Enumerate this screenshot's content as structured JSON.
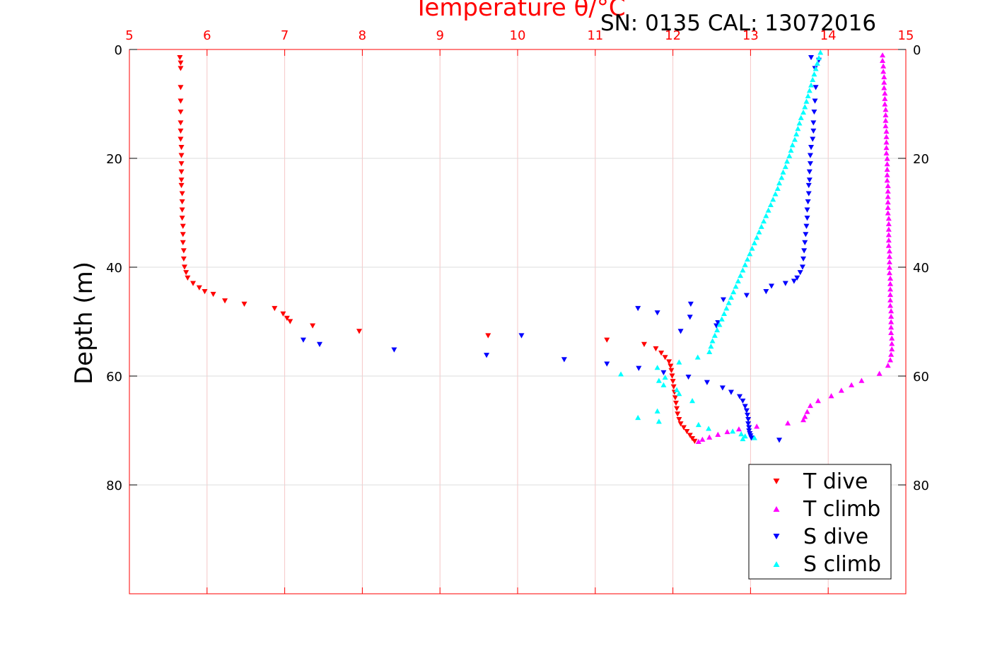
{
  "colors": {
    "t_dive": "#ff0000",
    "t_climb": "#ff00ff",
    "s_dive": "#0000ff",
    "s_climb": "#00ffff",
    "temp_axis": "#ff0000",
    "grid_temp": "#f5c6c6",
    "grid_depth": "#dcdcdc"
  },
  "chart_data": {
    "type": "scatter",
    "title": "Temperature θ/°C",
    "subtitle": "SN: 0135  CAL: 13072016",
    "xlabel": "Temperature θ/°C",
    "ylabel": "Depth (m)",
    "xlim": [
      5,
      15
    ],
    "ylim": [
      0,
      100
    ],
    "y_reversed": true,
    "x_ticks": [
      "5",
      "6",
      "7",
      "8",
      "9",
      "10",
      "11",
      "12",
      "13",
      "14",
      "15"
    ],
    "y_ticks": [
      "0",
      "20",
      "40",
      "60",
      "80"
    ],
    "grid": true,
    "legend_position": "bottom-right",
    "series": [
      {
        "name": "T dive",
        "marker": "triangle-down",
        "color": "#ff0000",
        "points": [
          [
            5.65,
            1.5
          ],
          [
            5.66,
            2.5
          ],
          [
            5.66,
            3.5
          ],
          [
            5.66,
            7
          ],
          [
            5.66,
            9.5
          ],
          [
            5.66,
            11.5
          ],
          [
            5.66,
            13.5
          ],
          [
            5.66,
            15
          ],
          [
            5.66,
            16.5
          ],
          [
            5.67,
            18
          ],
          [
            5.67,
            19.5
          ],
          [
            5.67,
            21
          ],
          [
            5.67,
            22.5
          ],
          [
            5.67,
            24
          ],
          [
            5.67,
            25
          ],
          [
            5.68,
            26.5
          ],
          [
            5.68,
            28
          ],
          [
            5.68,
            29.5
          ],
          [
            5.68,
            31
          ],
          [
            5.69,
            32.5
          ],
          [
            5.69,
            34
          ],
          [
            5.69,
            35.5
          ],
          [
            5.7,
            37
          ],
          [
            5.7,
            38.5
          ],
          [
            5.71,
            40
          ],
          [
            5.73,
            41
          ],
          [
            5.75,
            42
          ],
          [
            5.82,
            43
          ],
          [
            5.9,
            43.8
          ],
          [
            5.97,
            44.5
          ],
          [
            6.08,
            45
          ],
          [
            6.23,
            46.2
          ],
          [
            6.48,
            46.8
          ],
          [
            6.87,
            47.6
          ],
          [
            6.98,
            48.6
          ],
          [
            7.03,
            49.4
          ],
          [
            7.07,
            50
          ],
          [
            7.36,
            50.8
          ],
          [
            7.96,
            51.8
          ],
          [
            9.62,
            52.6
          ],
          [
            11.15,
            53.4
          ],
          [
            11.63,
            54.2
          ],
          [
            11.78,
            55
          ],
          [
            11.85,
            55.8
          ],
          [
            11.9,
            56.6
          ],
          [
            11.95,
            57.4
          ],
          [
            11.97,
            58.2
          ],
          [
            11.98,
            59
          ],
          [
            11.99,
            60
          ],
          [
            12.0,
            61
          ],
          [
            12.01,
            62
          ],
          [
            12.02,
            63
          ],
          [
            12.03,
            64
          ],
          [
            12.04,
            65
          ],
          [
            12.05,
            66
          ],
          [
            12.06,
            67
          ],
          [
            12.08,
            68
          ],
          [
            12.1,
            68.8
          ],
          [
            12.14,
            69.5
          ],
          [
            12.18,
            70.2
          ],
          [
            12.22,
            70.9
          ],
          [
            12.25,
            71.5
          ],
          [
            12.28,
            72
          ]
        ]
      },
      {
        "name": "T climb",
        "marker": "triangle-up",
        "color": "#ff00ff",
        "points": [
          [
            14.7,
            1
          ],
          [
            14.7,
            2
          ],
          [
            14.71,
            3
          ],
          [
            14.71,
            4
          ],
          [
            14.72,
            5
          ],
          [
            14.72,
            6
          ],
          [
            14.72,
            7
          ],
          [
            14.73,
            8
          ],
          [
            14.73,
            9
          ],
          [
            14.73,
            10
          ],
          [
            14.74,
            11
          ],
          [
            14.74,
            12
          ],
          [
            14.74,
            13
          ],
          [
            14.74,
            14
          ],
          [
            14.75,
            15
          ],
          [
            14.75,
            16
          ],
          [
            14.75,
            17
          ],
          [
            14.75,
            18
          ],
          [
            14.75,
            19
          ],
          [
            14.76,
            20
          ],
          [
            14.76,
            21
          ],
          [
            14.76,
            22
          ],
          [
            14.76,
            23
          ],
          [
            14.76,
            24
          ],
          [
            14.77,
            25
          ],
          [
            14.77,
            26
          ],
          [
            14.77,
            27
          ],
          [
            14.77,
            28
          ],
          [
            14.77,
            29
          ],
          [
            14.77,
            30
          ],
          [
            14.78,
            31
          ],
          [
            14.78,
            32
          ],
          [
            14.78,
            33
          ],
          [
            14.78,
            34
          ],
          [
            14.78,
            35
          ],
          [
            14.78,
            36
          ],
          [
            14.79,
            37
          ],
          [
            14.79,
            38
          ],
          [
            14.79,
            39
          ],
          [
            14.79,
            40
          ],
          [
            14.79,
            41
          ],
          [
            14.8,
            42
          ],
          [
            14.8,
            43
          ],
          [
            14.8,
            44
          ],
          [
            14.8,
            45
          ],
          [
            14.8,
            46
          ],
          [
            14.8,
            47
          ],
          [
            14.81,
            48
          ],
          [
            14.81,
            49
          ],
          [
            14.81,
            50
          ],
          [
            14.81,
            51
          ],
          [
            14.81,
            52
          ],
          [
            14.82,
            53
          ],
          [
            14.82,
            54
          ],
          [
            14.82,
            55
          ],
          [
            14.81,
            56
          ],
          [
            14.8,
            57
          ],
          [
            14.77,
            58
          ],
          [
            14.66,
            59.5
          ],
          [
            14.43,
            60.8
          ],
          [
            14.3,
            61.6
          ],
          [
            14.17,
            62.6
          ],
          [
            14.04,
            63.6
          ],
          [
            13.87,
            64.5
          ],
          [
            13.77,
            65.4
          ],
          [
            13.73,
            66.5
          ],
          [
            13.7,
            67.4
          ],
          [
            13.68,
            68
          ],
          [
            13.48,
            68.6
          ],
          [
            13.08,
            69.2
          ],
          [
            12.85,
            69.7
          ],
          [
            12.7,
            70.2
          ],
          [
            12.58,
            70.7
          ],
          [
            12.47,
            71.2
          ],
          [
            12.38,
            71.6
          ],
          [
            12.33,
            72
          ]
        ]
      },
      {
        "name": "S dive",
        "marker": "triangle-down",
        "color": "#0000ff",
        "points": [
          [
            13.78,
            1.5
          ],
          [
            13.88,
            2
          ],
          [
            13.83,
            3.5
          ],
          [
            13.84,
            7
          ],
          [
            13.83,
            9.5
          ],
          [
            13.82,
            11.5
          ],
          [
            13.81,
            13.5
          ],
          [
            13.81,
            15
          ],
          [
            13.8,
            16.5
          ],
          [
            13.78,
            18
          ],
          [
            13.77,
            19.5
          ],
          [
            13.77,
            21
          ],
          [
            13.76,
            22.5
          ],
          [
            13.76,
            24
          ],
          [
            13.75,
            25
          ],
          [
            13.75,
            26.5
          ],
          [
            13.74,
            28
          ],
          [
            13.73,
            29.5
          ],
          [
            13.73,
            31
          ],
          [
            13.72,
            32.5
          ],
          [
            13.71,
            34
          ],
          [
            13.7,
            35.5
          ],
          [
            13.69,
            37
          ],
          [
            13.68,
            38.5
          ],
          [
            13.67,
            40
          ],
          [
            13.64,
            41
          ],
          [
            13.6,
            42
          ],
          [
            13.56,
            42.6
          ],
          [
            13.45,
            43
          ],
          [
            13.27,
            43.5
          ],
          [
            13.2,
            44.5
          ],
          [
            12.95,
            45.2
          ],
          [
            12.65,
            46
          ],
          [
            12.23,
            46.8
          ],
          [
            11.55,
            47.6
          ],
          [
            11.8,
            48.4
          ],
          [
            12.22,
            49.2
          ],
          [
            12.58,
            50.2
          ],
          [
            12.56,
            50.8
          ],
          [
            12.1,
            51.8
          ],
          [
            10.05,
            52.6
          ],
          [
            7.24,
            53.4
          ],
          [
            7.45,
            54.2
          ],
          [
            8.41,
            55.2
          ],
          [
            9.6,
            56.2
          ],
          [
            10.6,
            57
          ],
          [
            11.15,
            57.8
          ],
          [
            11.56,
            58.6
          ],
          [
            11.88,
            59.4
          ],
          [
            12.2,
            60.2
          ],
          [
            12.44,
            61.2
          ],
          [
            12.64,
            62.2
          ],
          [
            12.75,
            63
          ],
          [
            12.86,
            63.8
          ],
          [
            12.9,
            64.6
          ],
          [
            12.93,
            65.6
          ],
          [
            12.95,
            66.4
          ],
          [
            12.96,
            67.2
          ],
          [
            12.97,
            68
          ],
          [
            12.97,
            68.8
          ],
          [
            12.98,
            69.5
          ],
          [
            12.98,
            70.1
          ],
          [
            12.99,
            70.6
          ],
          [
            13.0,
            71
          ],
          [
            13.01,
            71.4
          ],
          [
            13.37,
            71.8
          ]
        ]
      },
      {
        "name": "S climb",
        "marker": "triangle-up",
        "color": "#00ffff",
        "points": [
          [
            13.9,
            0.5
          ],
          [
            13.88,
            1.5
          ],
          [
            13.86,
            2.5
          ],
          [
            13.84,
            3.5
          ],
          [
            13.82,
            4.5
          ],
          [
            13.8,
            5.5
          ],
          [
            13.78,
            6.5
          ],
          [
            13.76,
            7.5
          ],
          [
            13.74,
            8.5
          ],
          [
            13.72,
            9.5
          ],
          [
            13.7,
            10.5
          ],
          [
            13.68,
            11.5
          ],
          [
            13.65,
            12.5
          ],
          [
            13.63,
            13.5
          ],
          [
            13.61,
            14.5
          ],
          [
            13.59,
            15.5
          ],
          [
            13.57,
            16.5
          ],
          [
            13.54,
            17.5
          ],
          [
            13.52,
            18.5
          ],
          [
            13.5,
            19.5
          ],
          [
            13.47,
            20.5
          ],
          [
            13.45,
            21.5
          ],
          [
            13.42,
            22.5
          ],
          [
            13.4,
            23.5
          ],
          [
            13.37,
            24.5
          ],
          [
            13.35,
            25.5
          ],
          [
            13.32,
            26.5
          ],
          [
            13.29,
            27.5
          ],
          [
            13.26,
            28.5
          ],
          [
            13.23,
            29.5
          ],
          [
            13.2,
            30.5
          ],
          [
            13.17,
            31.5
          ],
          [
            13.14,
            32.5
          ],
          [
            13.11,
            33.5
          ],
          [
            13.08,
            34.5
          ],
          [
            13.05,
            35.5
          ],
          [
            13.02,
            36.5
          ],
          [
            12.99,
            37.5
          ],
          [
            12.96,
            38.5
          ],
          [
            12.93,
            39.5
          ],
          [
            12.9,
            40.5
          ],
          [
            12.87,
            41.5
          ],
          [
            12.84,
            42.5
          ],
          [
            12.81,
            43.5
          ],
          [
            12.78,
            44.5
          ],
          [
            12.75,
            45.5
          ],
          [
            12.72,
            46.5
          ],
          [
            12.69,
            47.5
          ],
          [
            12.66,
            48.5
          ],
          [
            12.63,
            49.5
          ],
          [
            12.6,
            50.5
          ],
          [
            12.57,
            51.5
          ],
          [
            12.54,
            52.5
          ],
          [
            12.51,
            53.5
          ],
          [
            12.49,
            54.5
          ],
          [
            12.47,
            55.5
          ],
          [
            12.32,
            56.5
          ],
          [
            12.08,
            57.4
          ],
          [
            11.8,
            58.4
          ],
          [
            11.33,
            59.6
          ],
          [
            11.9,
            60.2
          ],
          [
            11.82,
            60.8
          ],
          [
            11.88,
            61.6
          ],
          [
            12.05,
            62.5
          ],
          [
            12.08,
            63.2
          ],
          [
            12.25,
            64.5
          ],
          [
            11.8,
            66.4
          ],
          [
            11.55,
            67.6
          ],
          [
            11.82,
            68.3
          ],
          [
            12.33,
            68.9
          ],
          [
            12.46,
            69.6
          ],
          [
            12.77,
            70.1
          ],
          [
            12.88,
            70.6
          ],
          [
            12.93,
            71
          ],
          [
            13.05,
            71.3
          ],
          [
            12.9,
            71.5
          ]
        ]
      }
    ]
  }
}
